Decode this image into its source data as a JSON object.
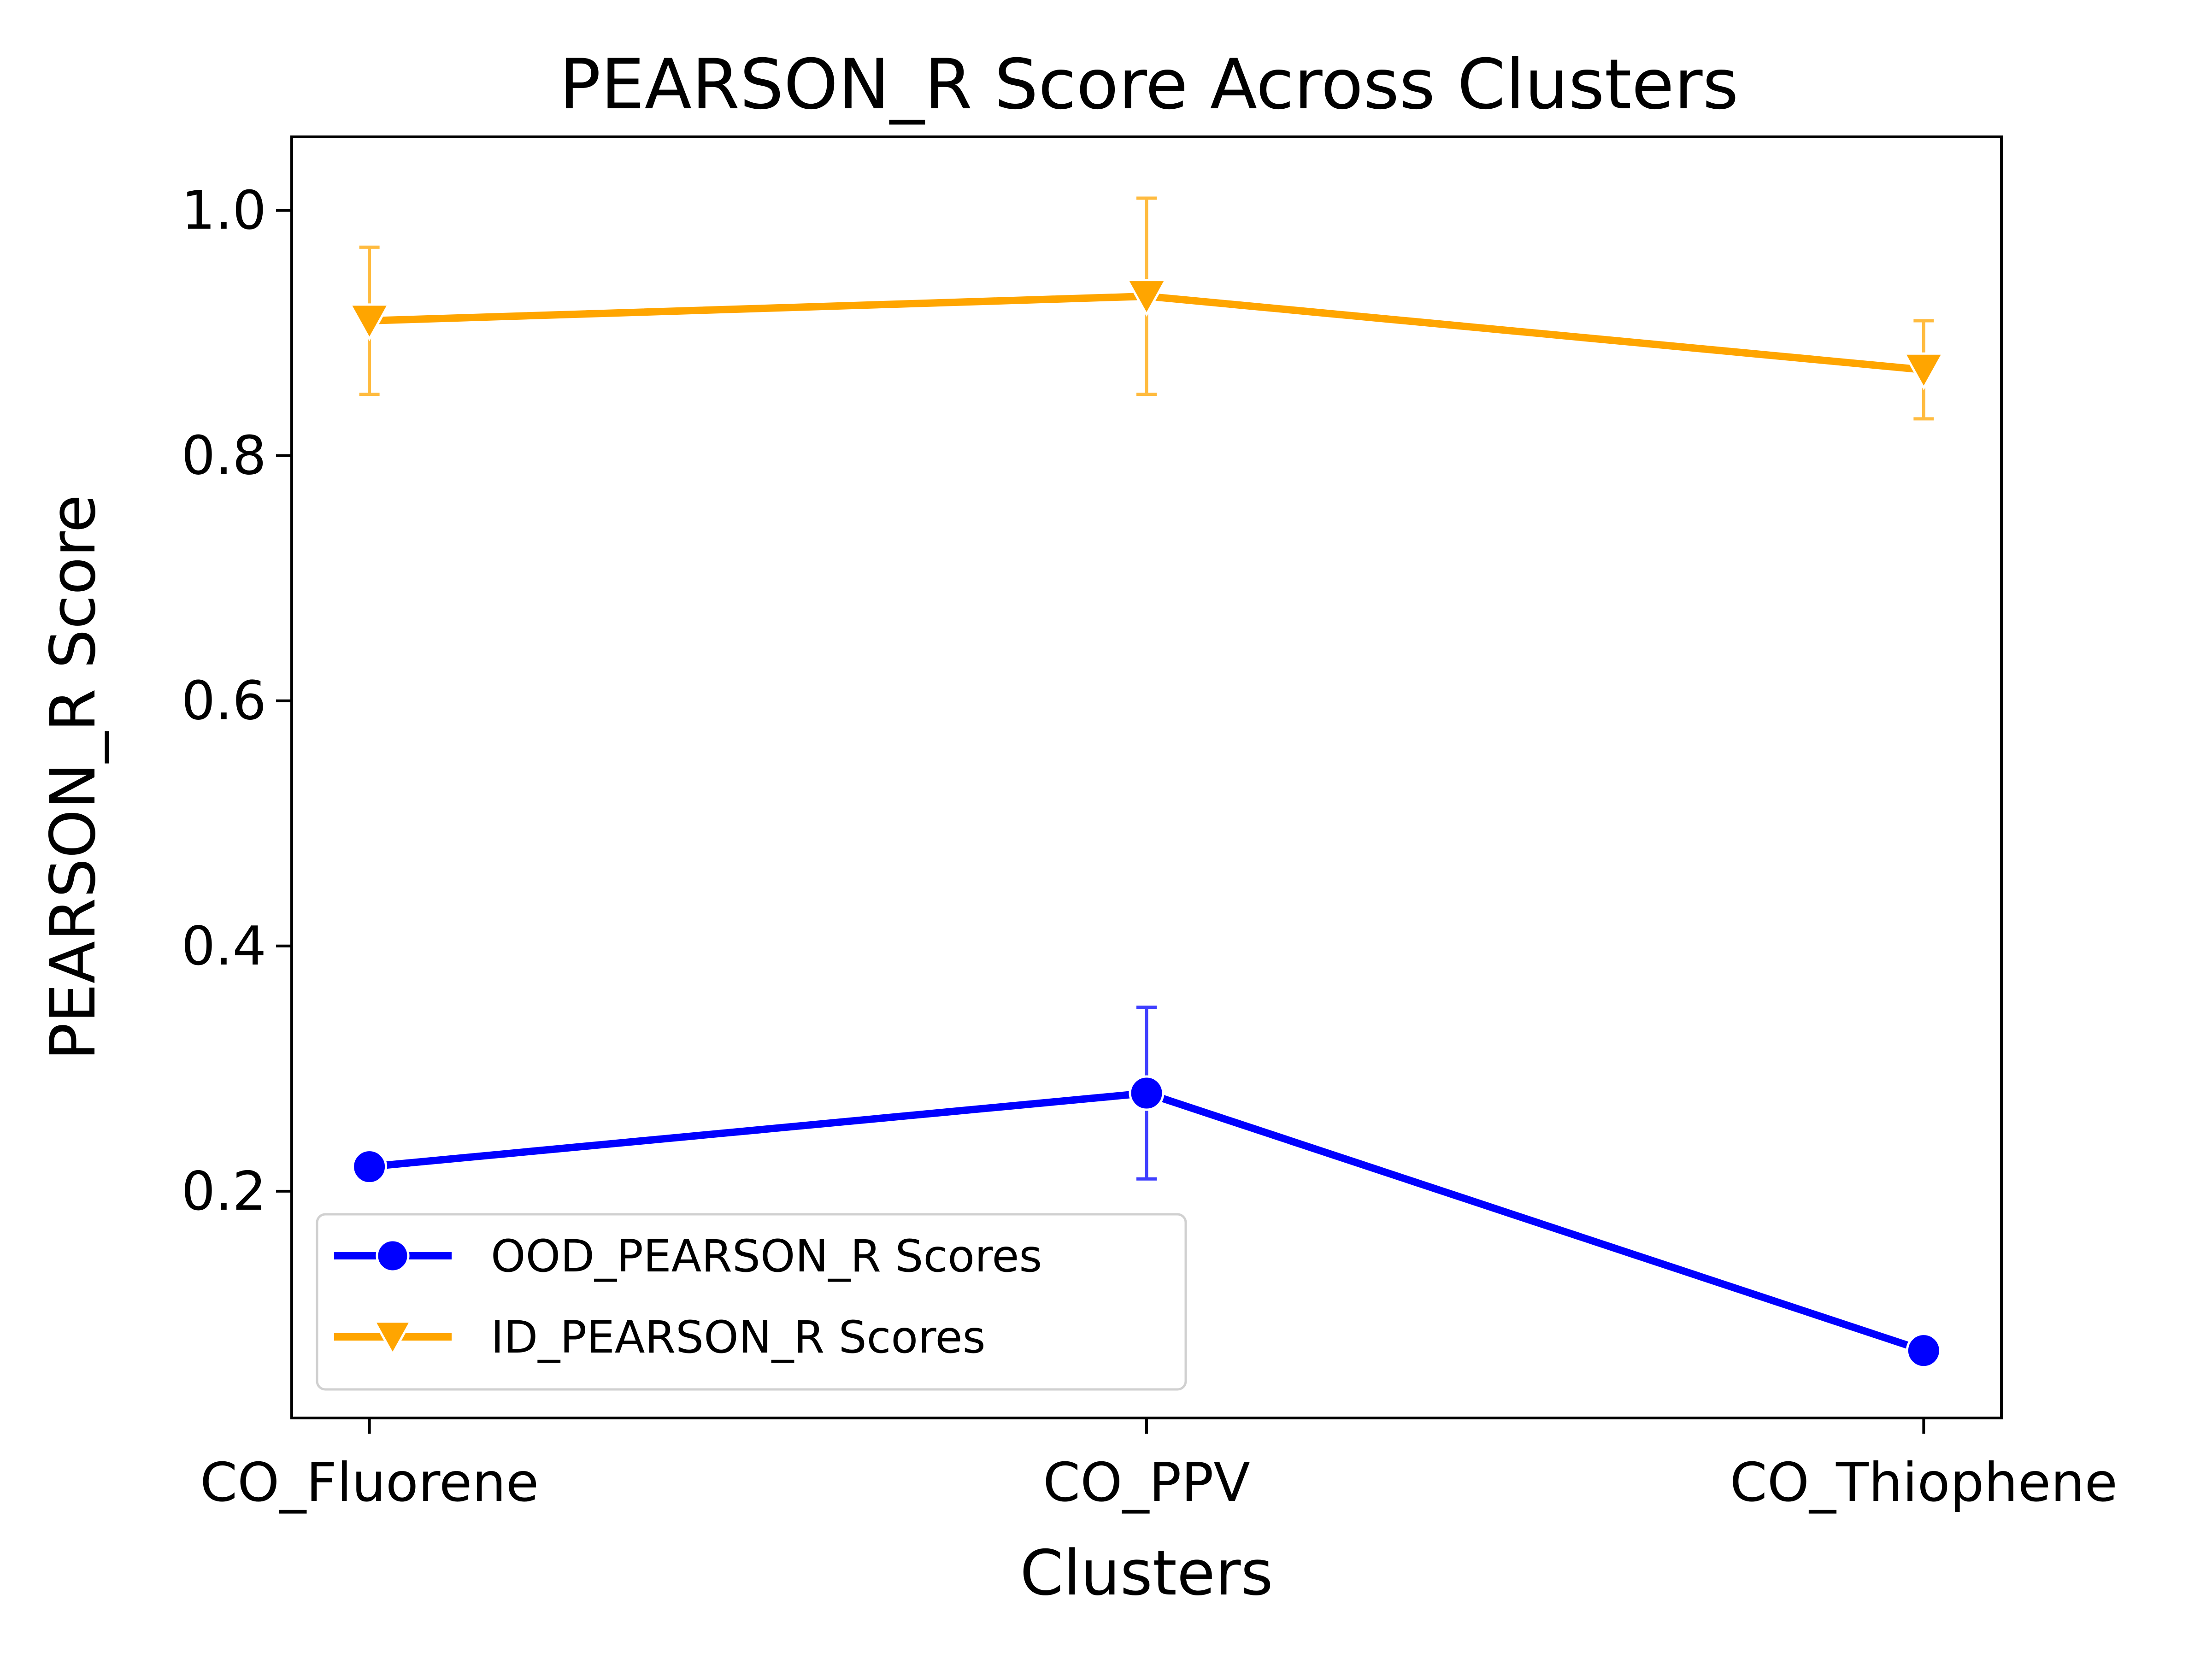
{
  "chart_data": {
    "type": "line",
    "title": "PEARSON_R Score Across Clusters",
    "xlabel": "Clusters",
    "ylabel": "PEARSON_R Score",
    "categories": [
      "CO_Fluorene",
      "CO_PPV",
      "CO_Thiophene"
    ],
    "ylim": [
      0.015,
      1.06
    ],
    "yticks": [
      0.2,
      0.4,
      0.6,
      0.8,
      1.0
    ],
    "ytick_labels": [
      "0.2",
      "0.4",
      "0.6",
      "0.8",
      "1.0"
    ],
    "grid": false,
    "legend_position": "lower-left",
    "series": [
      {
        "name": "OOD_PEARSON_R Scores",
        "color": "#0000ff",
        "marker": "circle",
        "values": [
          0.22,
          0.28,
          0.07
        ],
        "err_low": [
          0.21,
          0.21,
          0.06
        ],
        "err_high": [
          0.23,
          0.35,
          0.08
        ]
      },
      {
        "name": "ID_PEARSON_R Scores",
        "color": "#ffa500",
        "marker": "triangle-down",
        "values": [
          0.91,
          0.93,
          0.87
        ],
        "err_low": [
          0.85,
          0.85,
          0.83
        ],
        "err_high": [
          0.97,
          1.01,
          0.91
        ]
      }
    ]
  }
}
